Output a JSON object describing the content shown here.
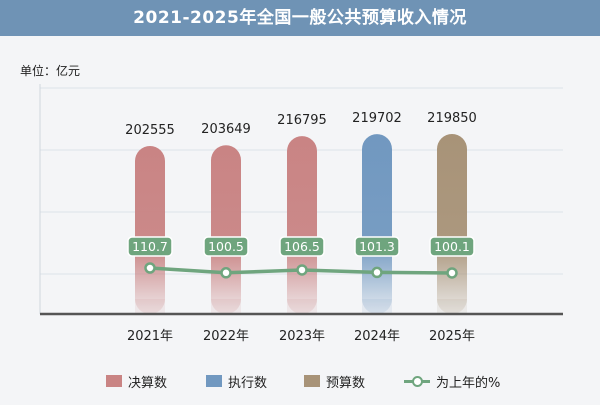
{
  "header": {
    "title": "2021-2025年全国一般公共预算收入情况",
    "unit": "单位：亿元"
  },
  "colors": {
    "title_bg": "#6f93b5",
    "final": "#c98484",
    "execution": "#7198c0",
    "budget": "#a89378",
    "growth_line": "#6fa57e"
  },
  "chart_data": {
    "type": "bar",
    "title": "2021-2025年全国一般公共预算收入情况",
    "ylabel": "",
    "unit": "亿元",
    "categories": [
      "2021年",
      "2022年",
      "2023年",
      "2024年",
      "2025年"
    ],
    "values": [
      202555,
      203649,
      216795,
      219702,
      219850
    ],
    "bar_types": [
      "决算数",
      "决算数",
      "决算数",
      "执行数",
      "预算数"
    ],
    "growth_series": {
      "name": "为上年的%",
      "values": [
        110.7,
        100.5,
        106.5,
        101.3,
        100.1
      ]
    },
    "legend": [
      "决算数",
      "执行数",
      "预算数",
      "为上年的%"
    ],
    "legend_position": "bottom"
  }
}
